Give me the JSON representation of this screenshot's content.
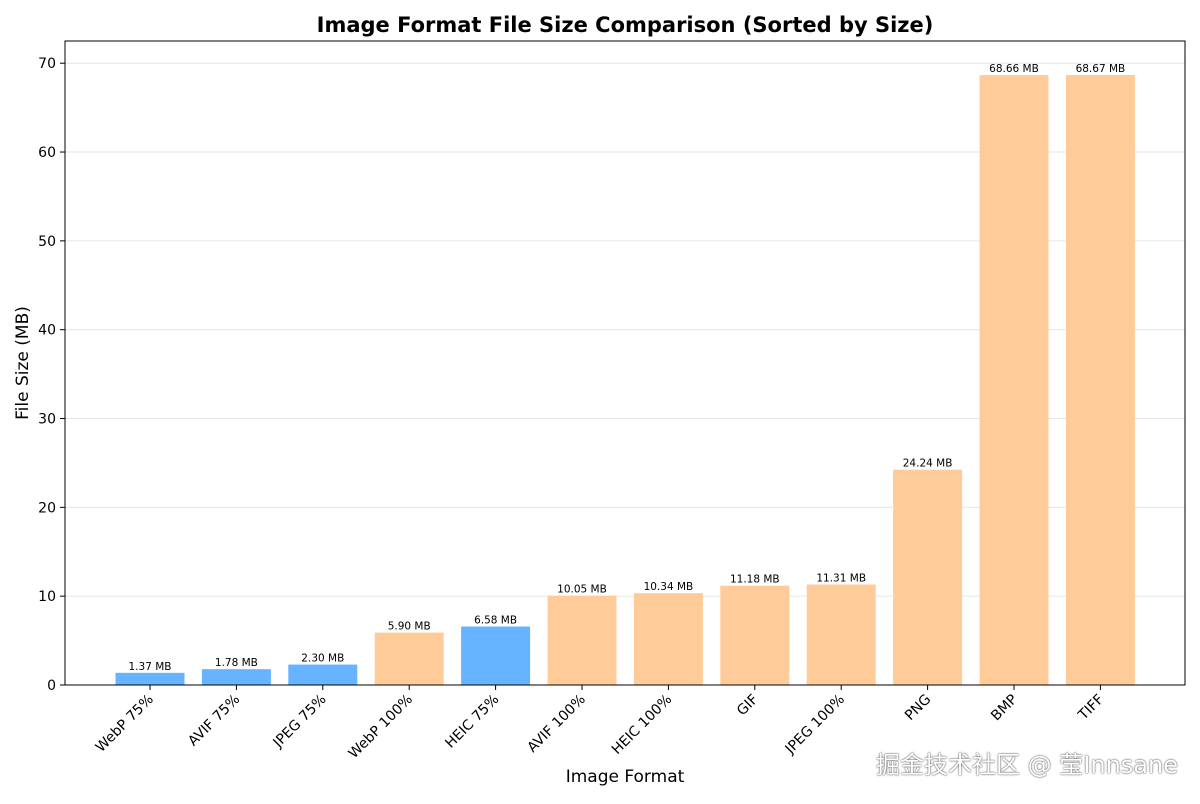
{
  "chart_data": {
    "type": "bar",
    "title": "Image Format File Size Comparison (Sorted by Size)",
    "xlabel": "Image Format",
    "ylabel": "File Size (MB)",
    "ylim": [
      0,
      72.5
    ],
    "yticks": [
      0,
      10,
      20,
      30,
      40,
      50,
      60,
      70
    ],
    "grid": "y",
    "categories": [
      "WebP 75%",
      "AVIF 75%",
      "JPEG 75%",
      "WebP 100%",
      "HEIC 75%",
      "AVIF 100%",
      "HEIC 100%",
      "GIF",
      "JPEG 100%",
      "PNG",
      "BMP",
      "TIFF"
    ],
    "values": [
      1.37,
      1.78,
      2.3,
      5.9,
      6.58,
      10.05,
      10.34,
      11.18,
      11.31,
      24.24,
      68.66,
      68.67
    ],
    "data_labels": [
      "1.37 MB",
      "1.78 MB",
      "2.30 MB",
      "5.90 MB",
      "6.58 MB",
      "10.05 MB",
      "10.34 MB",
      "11.18 MB",
      "11.31 MB",
      "24.24 MB",
      "68.66 MB",
      "68.67 MB"
    ],
    "bar_colors": [
      "#66b3ff",
      "#66b3ff",
      "#66b3ff",
      "#ffcc99",
      "#66b3ff",
      "#ffcc99",
      "#ffcc99",
      "#ffcc99",
      "#ffcc99",
      "#ffcc99",
      "#ffcc99",
      "#ffcc99"
    ]
  },
  "watermark": "掘金技术社区 @ 莹Innsane"
}
